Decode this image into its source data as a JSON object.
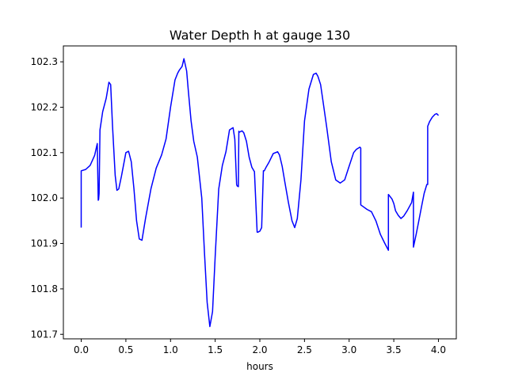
{
  "chart_data": {
    "type": "line",
    "title": "Water Depth h at gauge 130",
    "xlabel": "hours",
    "ylabel": "",
    "xlim": [
      -0.2,
      4.2
    ],
    "ylim": [
      101.69,
      102.335
    ],
    "xticks": [
      0.0,
      0.5,
      1.0,
      1.5,
      2.0,
      2.5,
      3.0,
      3.5,
      4.0
    ],
    "xtick_labels": [
      "0.0",
      "0.5",
      "1.0",
      "1.5",
      "2.0",
      "2.5",
      "3.0",
      "3.5",
      "4.0"
    ],
    "yticks": [
      101.7,
      101.8,
      101.9,
      102.0,
      102.1,
      102.2,
      102.3
    ],
    "ytick_labels": [
      "101.7",
      "101.8",
      "101.9",
      "102.0",
      "102.1",
      "102.2",
      "102.3"
    ],
    "grid": false,
    "series": [
      {
        "color": "#0000ff",
        "x": [
          0.0,
          0.0,
          0.05,
          0.1,
          0.15,
          0.18,
          0.19,
          0.195,
          0.2,
          0.21,
          0.24,
          0.28,
          0.31,
          0.33,
          0.35,
          0.38,
          0.4,
          0.42,
          0.45,
          0.5,
          0.53,
          0.56,
          0.59,
          0.62,
          0.65,
          0.68,
          0.72,
          0.78,
          0.84,
          0.9,
          0.95,
          1.0,
          1.05,
          1.08,
          1.1,
          1.13,
          1.15,
          1.18,
          1.2,
          1.23,
          1.26,
          1.3,
          1.35,
          1.38,
          1.41,
          1.44,
          1.47,
          1.5,
          1.54,
          1.58,
          1.62,
          1.66,
          1.7,
          1.72,
          1.74,
          1.745,
          1.76,
          1.765,
          1.77,
          1.8,
          1.82,
          1.85,
          1.88,
          1.91,
          1.94,
          1.97,
          1.98,
          2.0,
          2.02,
          2.04,
          2.05,
          2.07,
          2.1,
          2.15,
          2.2,
          2.22,
          2.25,
          2.28,
          2.32,
          2.36,
          2.39,
          2.42,
          2.46,
          2.5,
          2.55,
          2.6,
          2.63,
          2.65,
          2.68,
          2.71,
          2.75,
          2.8,
          2.85,
          2.9,
          2.95,
          3.0,
          3.05,
          3.08,
          3.12,
          3.13,
          3.13,
          3.2,
          3.25,
          3.3,
          3.35,
          3.4,
          3.44,
          3.44,
          3.48,
          3.5,
          3.52,
          3.55,
          3.58,
          3.61,
          3.65,
          3.7,
          3.72,
          3.72,
          3.75,
          3.78,
          3.81,
          3.84,
          3.87,
          3.88,
          3.88,
          3.9,
          3.93,
          3.96,
          3.98,
          4.0
        ],
        "y": [
          101.935,
          102.06,
          102.063,
          102.072,
          102.094,
          102.12,
          101.995,
          101.997,
          102.01,
          102.15,
          102.19,
          102.22,
          102.255,
          102.25,
          102.16,
          102.05,
          102.017,
          102.02,
          102.048,
          102.1,
          102.103,
          102.08,
          102.02,
          101.95,
          101.91,
          101.907,
          101.955,
          102.02,
          102.066,
          102.095,
          102.13,
          102.2,
          102.26,
          102.275,
          102.282,
          102.29,
          102.307,
          102.28,
          102.235,
          102.17,
          102.125,
          102.09,
          102.0,
          101.88,
          101.77,
          101.717,
          101.75,
          101.87,
          102.02,
          102.072,
          102.102,
          102.15,
          102.155,
          102.13,
          102.03,
          102.027,
          102.025,
          102.147,
          102.145,
          102.148,
          102.144,
          102.125,
          102.09,
          102.068,
          102.058,
          101.925,
          101.925,
          101.927,
          101.935,
          102.06,
          102.06,
          102.068,
          102.078,
          102.098,
          102.102,
          102.095,
          102.07,
          102.035,
          101.99,
          101.95,
          101.935,
          101.955,
          102.04,
          102.17,
          102.24,
          102.272,
          102.275,
          102.268,
          102.25,
          102.21,
          102.155,
          102.08,
          102.04,
          102.033,
          102.04,
          102.07,
          102.1,
          102.107,
          102.112,
          102.11,
          101.985,
          101.975,
          101.97,
          101.95,
          101.92,
          101.9,
          101.885,
          102.008,
          101.998,
          101.988,
          101.972,
          101.962,
          101.955,
          101.96,
          101.972,
          101.99,
          102.013,
          101.892,
          101.92,
          101.95,
          101.98,
          102.01,
          102.03,
          102.03,
          102.158,
          102.168,
          102.178,
          102.184,
          102.186,
          102.182
        ]
      }
    ]
  }
}
